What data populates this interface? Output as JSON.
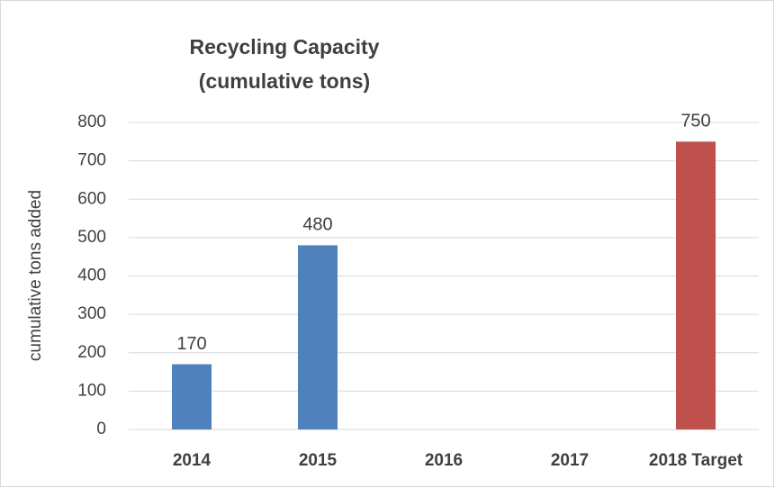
{
  "chart_data": {
    "type": "bar",
    "title": [
      "Recycling Capacity",
      "(cumulative tons)"
    ],
    "y_label": "cumulative tons added",
    "categories": [
      "2014",
      "2015",
      "2016",
      "2017",
      "2018 Target"
    ],
    "values": [
      170,
      480,
      null,
      null,
      750
    ],
    "colors": [
      "#4f81bd",
      "#4f81bd",
      "#4f81bd",
      "#4f81bd",
      "#c0504d"
    ],
    "ylim": [
      0,
      800
    ],
    "yticks": [
      0,
      100,
      200,
      300,
      400,
      500,
      600,
      700,
      800
    ],
    "grid": true,
    "data_labels": true
  }
}
